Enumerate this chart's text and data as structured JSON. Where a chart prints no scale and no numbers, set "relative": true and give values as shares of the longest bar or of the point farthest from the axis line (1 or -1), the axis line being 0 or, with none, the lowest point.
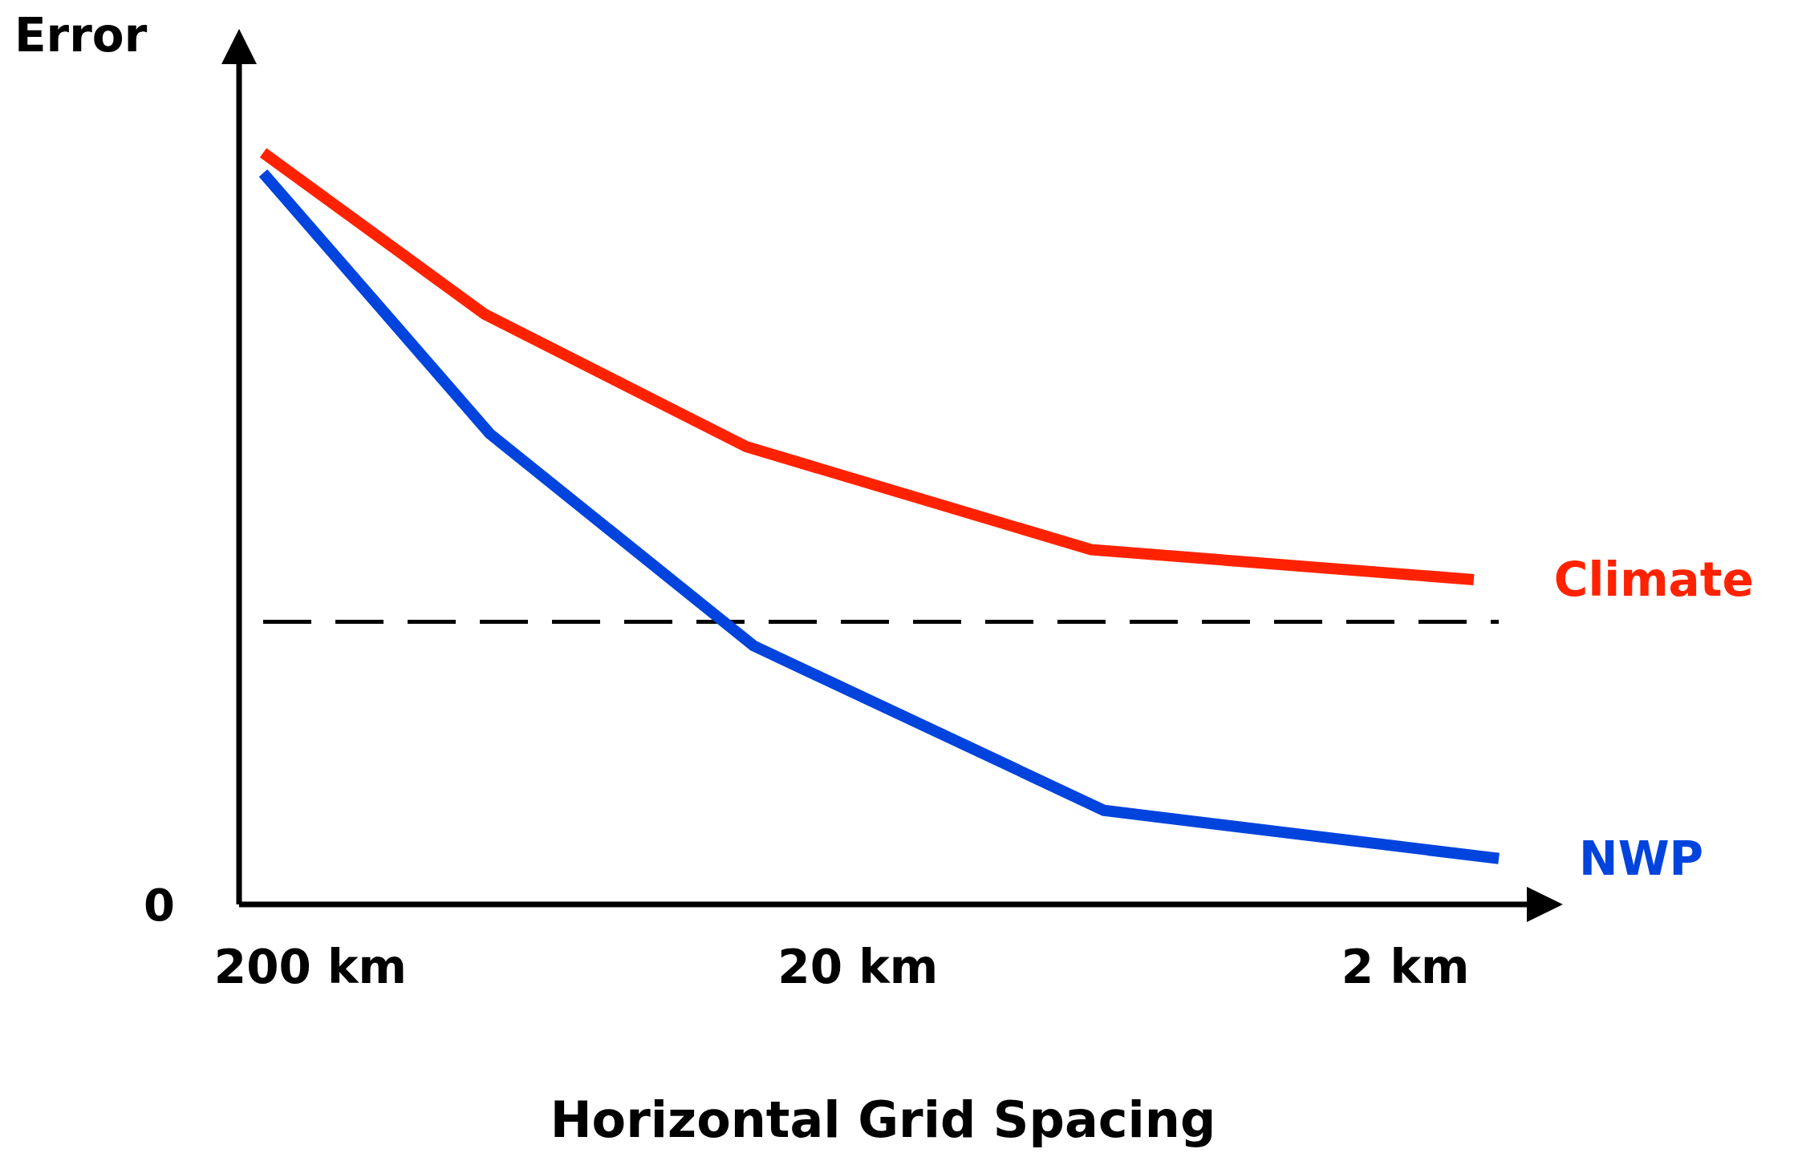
{
  "chart_data": {
    "type": "line",
    "ylabel": "Error",
    "xlabel": "Horizontal Grid Spacing",
    "relative": true,
    "log": "x",
    "xlim": [
      270,
      1.2
    ],
    "xticks": [
      {
        "value": 200,
        "label": "200 km"
      },
      {
        "value": 20,
        "label": "20 km"
      },
      {
        "value": 2,
        "label": "2 km"
      }
    ],
    "series": [
      {
        "name": "Climate",
        "color": "#ff2200",
        "x": [
          244,
          96,
          32,
          7.5,
          1.5
        ],
        "values": [
          1,
          0.785,
          0.609,
          0.472,
          0.432
        ]
      },
      {
        "name": "NWP",
        "color": "#0044dd",
        "x": [
          244,
          94,
          31,
          7.1,
          1.35
        ],
        "values": [
          0.973,
          0.626,
          0.344,
          0.125,
          0.061
        ]
      }
    ],
    "ref_lines": [
      {
        "axis": "y",
        "value": 0.376,
        "color": "#000000",
        "line_style": "dashed"
      }
    ],
    "annotations": [
      "0"
    ],
    "grid": false,
    "legend": false,
    "marker": "none",
    "line_style": "solid"
  }
}
